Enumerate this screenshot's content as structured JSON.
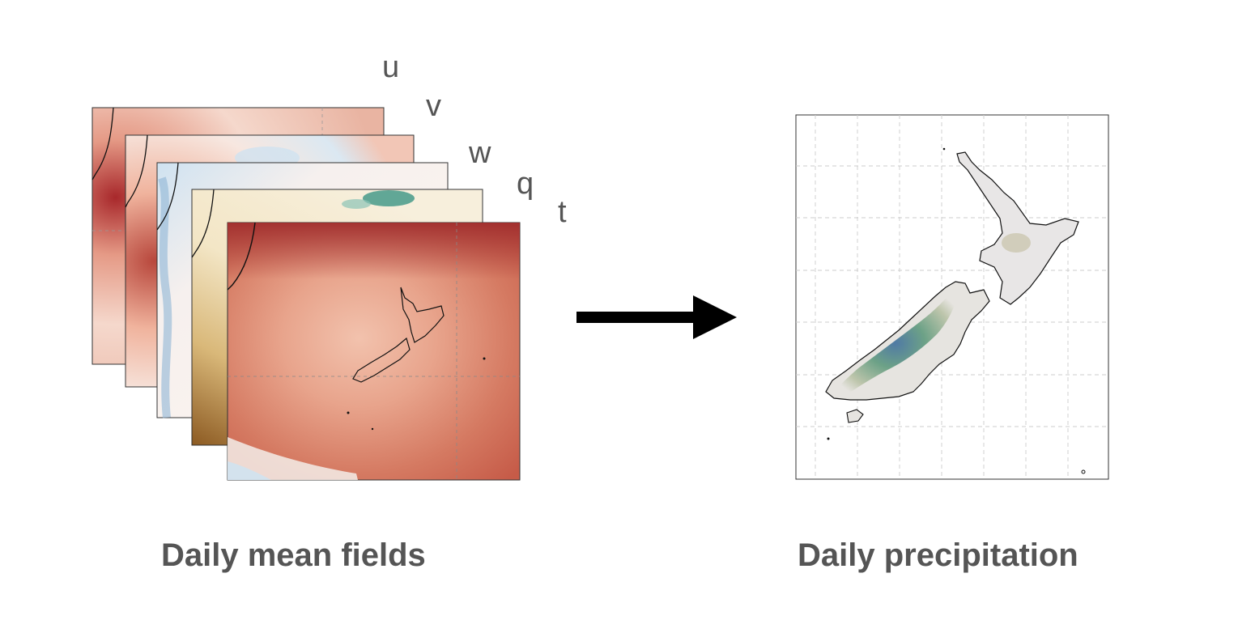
{
  "variables": [
    {
      "label": "u"
    },
    {
      "label": "v"
    },
    {
      "label": "w"
    },
    {
      "label": "q"
    },
    {
      "label": "t"
    }
  ],
  "captions": {
    "input": "Daily mean fields",
    "output": "Daily precipitation"
  },
  "colors": {
    "text": "#555555",
    "arrow": "#000000",
    "field_warm": "#c65b48",
    "field_dark": "#9e2a2b",
    "field_cool": "#b9d6ea",
    "moisture_brown": "#8c5a22",
    "moisture_teal": "#2f8f7f",
    "precip_green": "#5f9a7d",
    "precip_blue": "#3f6e9e"
  },
  "icons": [
    "right-arrow-icon"
  ]
}
